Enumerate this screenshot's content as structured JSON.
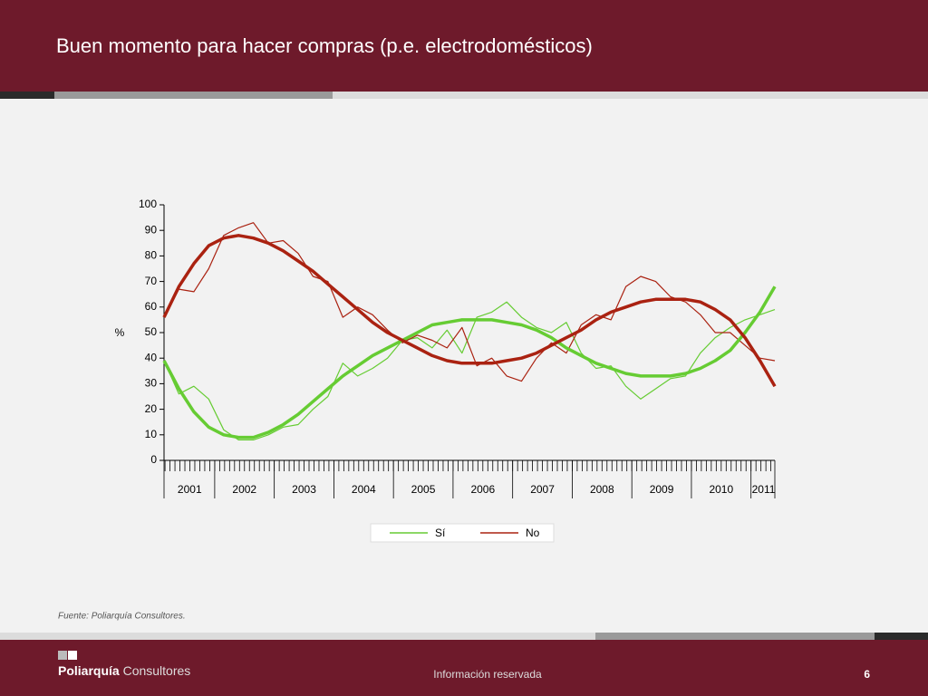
{
  "header": {
    "title": "Buen momento para hacer compras (p.e. electrodomésticos)"
  },
  "chart_data": {
    "type": "line",
    "y_label": "%",
    "x": [
      2001.15,
      2001.4,
      2001.65,
      2001.9,
      2002.15,
      2002.4,
      2002.65,
      2002.9,
      2003.15,
      2003.4,
      2003.65,
      2003.9,
      2004.15,
      2004.4,
      2004.65,
      2004.9,
      2005.15,
      2005.4,
      2005.65,
      2005.9,
      2006.15,
      2006.4,
      2006.65,
      2006.9,
      2007.15,
      2007.4,
      2007.65,
      2007.9,
      2008.15,
      2008.4,
      2008.65,
      2008.9,
      2009.15,
      2009.4,
      2009.65,
      2009.9,
      2010.15,
      2010.4,
      2010.65,
      2010.9,
      2011.15,
      2011.4
    ],
    "xlim": [
      2001.15,
      2011.4
    ],
    "xticks": [
      {
        "value": 2001.58,
        "label": "2001"
      },
      {
        "value": 2002.5,
        "label": "2002"
      },
      {
        "value": 2003.5,
        "label": "2003"
      },
      {
        "value": 2004.5,
        "label": "2004"
      },
      {
        "value": 2005.5,
        "label": "2005"
      },
      {
        "value": 2006.5,
        "label": "2006"
      },
      {
        "value": 2007.5,
        "label": "2007"
      },
      {
        "value": 2008.5,
        "label": "2008"
      },
      {
        "value": 2009.5,
        "label": "2009"
      },
      {
        "value": 2010.5,
        "label": "2010"
      },
      {
        "value": 2011.21,
        "label": "2011"
      }
    ],
    "ylim": [
      0,
      100
    ],
    "yticks": [
      0,
      10,
      20,
      30,
      40,
      50,
      60,
      70,
      80,
      90,
      100
    ],
    "series": [
      {
        "name": "Sí",
        "color": "#66cc33",
        "line_width": 1.2,
        "values": [
          39,
          26,
          29,
          24,
          12,
          8,
          8,
          10,
          13,
          14,
          20,
          25,
          38,
          33,
          36,
          40,
          47,
          48,
          44,
          51,
          42,
          56,
          58,
          62,
          56,
          52,
          50,
          54,
          42,
          36,
          37,
          29,
          24,
          28,
          32,
          33,
          42,
          48,
          52,
          55,
          57,
          59
        ]
      },
      {
        "name": "No",
        "color": "#aa2211",
        "line_width": 1.2,
        "values": [
          56,
          67,
          66,
          75,
          88,
          91,
          93,
          85,
          86,
          81,
          72,
          70,
          56,
          60,
          57,
          51,
          46,
          49,
          47,
          44,
          52,
          37,
          40,
          33,
          31,
          40,
          46,
          42,
          53,
          57,
          55,
          68,
          72,
          70,
          64,
          62,
          57,
          50,
          50,
          45,
          40,
          39
        ]
      },
      {
        "color": "#66cc33",
        "line_width": 3.5,
        "values": [
          39,
          28,
          19,
          13,
          10,
          9,
          9,
          11,
          14,
          18,
          23,
          28,
          33,
          37,
          41,
          44,
          47,
          50,
          53,
          54,
          55,
          55,
          55,
          54,
          53,
          51,
          48,
          44,
          41,
          38,
          36,
          34,
          33,
          33,
          33,
          34,
          36,
          39,
          43,
          50,
          58,
          68
        ]
      },
      {
        "color": "#aa2211",
        "line_width": 3.5,
        "values": [
          56,
          68,
          77,
          84,
          87,
          88,
          87,
          85,
          82,
          78,
          74,
          69,
          64,
          59,
          54,
          50,
          47,
          44,
          41,
          39,
          38,
          38,
          38,
          39,
          40,
          42,
          45,
          48,
          51,
          55,
          58,
          60,
          62,
          63,
          63,
          63,
          62,
          59,
          55,
          48,
          39,
          29
        ]
      }
    ]
  },
  "source": "Fuente: Poliarquía Consultores.",
  "footer": {
    "brand_bold": "Poliarquía",
    "brand": "Consultores",
    "note": "Información reservada",
    "page": "6"
  }
}
